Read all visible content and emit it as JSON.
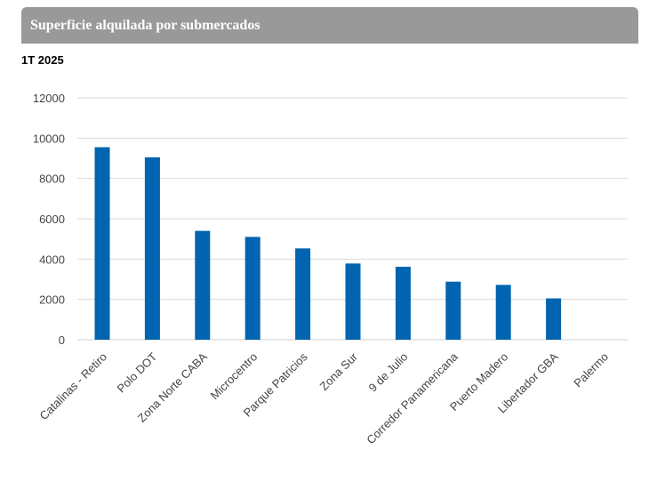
{
  "header": {
    "title": "Superficie alquilada por submercados",
    "period": "1T 2025"
  },
  "chart_data": {
    "type": "bar",
    "categories": [
      "Catalinas - Retiro",
      "Polo DOT",
      "Zona Norte CABA",
      "Microcentro",
      "Parque Patricios",
      "Zona Sur",
      "9 de Julio",
      "Corredor Panamericana",
      "Puerto Madero",
      "Libertador GBA",
      "Palermo"
    ],
    "values": [
      9550,
      9050,
      5400,
      5100,
      4530,
      3780,
      3620,
      2880,
      2720,
      2050,
      0
    ],
    "yticks": [
      0,
      2000,
      4000,
      6000,
      8000,
      10000,
      12000
    ],
    "ylim": [
      0,
      12000
    ],
    "grid": true,
    "legend": "none",
    "colors": {
      "bar": "#0064b0",
      "grid": "#d9d9d9",
      "header": "#999999"
    }
  }
}
